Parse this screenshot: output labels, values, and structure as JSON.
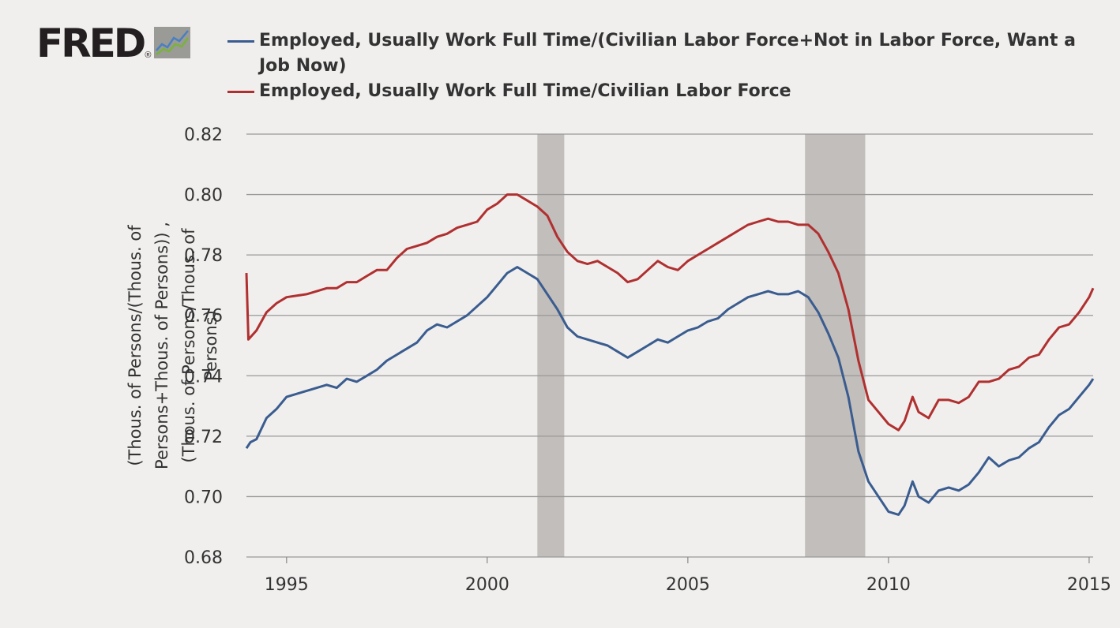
{
  "logo": {
    "text": "FRED",
    "reg": "®",
    "icon": "line-chart-icon"
  },
  "colors": {
    "blue": "#3a5c8f",
    "red": "#b03030",
    "recession": "#c2bebb",
    "grid": "#999999",
    "bg": "#f0efee"
  },
  "chart_data": {
    "type": "line",
    "title": "",
    "xlabel": "",
    "ylabel_lines": [
      "(Thous. of Persons/(Thous. of",
      "Persons+Thous. of Persons)) ,",
      "(Thous. of Persons/Thous. of",
      "Persons)"
    ],
    "xlim": [
      1994.0,
      2015.1
    ],
    "ylim": [
      0.68,
      0.82
    ],
    "x_ticks": [
      1995,
      2000,
      2005,
      2010,
      2015
    ],
    "x_tick_labels": [
      "1995",
      "2000",
      "2005",
      "2010",
      "2015"
    ],
    "y_ticks": [
      0.68,
      0.7,
      0.72,
      0.74,
      0.76,
      0.78,
      0.8,
      0.82
    ],
    "y_tick_labels": [
      "0.68",
      "0.70",
      "0.72",
      "0.74",
      "0.76",
      "0.78",
      "0.80",
      "0.82"
    ],
    "grid": true,
    "recessions": [
      [
        2001.25,
        2001.92
      ],
      [
        2007.92,
        2009.42
      ]
    ],
    "series": [
      {
        "name": "Employed, Usually Work Full Time/(Civilian Labor Force+Not in Labor Force, Want a Job Now)",
        "color": "#3a5c8f",
        "points": [
          [
            1994.0,
            0.716
          ],
          [
            1994.1,
            0.718
          ],
          [
            1994.25,
            0.719
          ],
          [
            1994.5,
            0.726
          ],
          [
            1994.75,
            0.729
          ],
          [
            1995.0,
            0.733
          ],
          [
            1995.5,
            0.735
          ],
          [
            1996.0,
            0.737
          ],
          [
            1996.25,
            0.736
          ],
          [
            1996.5,
            0.739
          ],
          [
            1996.75,
            0.738
          ],
          [
            1997.0,
            0.74
          ],
          [
            1997.25,
            0.742
          ],
          [
            1997.5,
            0.745
          ],
          [
            1997.75,
            0.747
          ],
          [
            1998.0,
            0.749
          ],
          [
            1998.25,
            0.751
          ],
          [
            1998.5,
            0.755
          ],
          [
            1998.75,
            0.757
          ],
          [
            1999.0,
            0.756
          ],
          [
            1999.25,
            0.758
          ],
          [
            1999.5,
            0.76
          ],
          [
            1999.75,
            0.763
          ],
          [
            2000.0,
            0.766
          ],
          [
            2000.25,
            0.77
          ],
          [
            2000.5,
            0.774
          ],
          [
            2000.75,
            0.776
          ],
          [
            2001.0,
            0.774
          ],
          [
            2001.25,
            0.772
          ],
          [
            2001.5,
            0.767
          ],
          [
            2001.75,
            0.762
          ],
          [
            2002.0,
            0.756
          ],
          [
            2002.25,
            0.753
          ],
          [
            2002.5,
            0.752
          ],
          [
            2002.75,
            0.751
          ],
          [
            2003.0,
            0.75
          ],
          [
            2003.25,
            0.748
          ],
          [
            2003.5,
            0.746
          ],
          [
            2003.75,
            0.748
          ],
          [
            2004.0,
            0.75
          ],
          [
            2004.25,
            0.752
          ],
          [
            2004.5,
            0.751
          ],
          [
            2004.75,
            0.753
          ],
          [
            2005.0,
            0.755
          ],
          [
            2005.25,
            0.756
          ],
          [
            2005.5,
            0.758
          ],
          [
            2005.75,
            0.759
          ],
          [
            2006.0,
            0.762
          ],
          [
            2006.25,
            0.764
          ],
          [
            2006.5,
            0.766
          ],
          [
            2006.75,
            0.767
          ],
          [
            2007.0,
            0.768
          ],
          [
            2007.25,
            0.767
          ],
          [
            2007.5,
            0.767
          ],
          [
            2007.75,
            0.768
          ],
          [
            2008.0,
            0.766
          ],
          [
            2008.25,
            0.761
          ],
          [
            2008.5,
            0.754
          ],
          [
            2008.75,
            0.746
          ],
          [
            2009.0,
            0.733
          ],
          [
            2009.25,
            0.715
          ],
          [
            2009.5,
            0.705
          ],
          [
            2009.75,
            0.7
          ],
          [
            2010.0,
            0.695
          ],
          [
            2010.25,
            0.694
          ],
          [
            2010.4,
            0.697
          ],
          [
            2010.6,
            0.705
          ],
          [
            2010.75,
            0.7
          ],
          [
            2011.0,
            0.698
          ],
          [
            2011.25,
            0.702
          ],
          [
            2011.5,
            0.703
          ],
          [
            2011.75,
            0.702
          ],
          [
            2012.0,
            0.704
          ],
          [
            2012.25,
            0.708
          ],
          [
            2012.5,
            0.713
          ],
          [
            2012.75,
            0.71
          ],
          [
            2013.0,
            0.712
          ],
          [
            2013.25,
            0.713
          ],
          [
            2013.5,
            0.716
          ],
          [
            2013.75,
            0.718
          ],
          [
            2014.0,
            0.723
          ],
          [
            2014.25,
            0.727
          ],
          [
            2014.5,
            0.729
          ],
          [
            2014.75,
            0.733
          ],
          [
            2015.0,
            0.737
          ],
          [
            2015.1,
            0.739
          ]
        ]
      },
      {
        "name": "Employed, Usually Work Full Time/Civilian Labor Force",
        "color": "#b03030",
        "points": [
          [
            1994.0,
            0.774
          ],
          [
            1994.05,
            0.752
          ],
          [
            1994.25,
            0.755
          ],
          [
            1994.5,
            0.761
          ],
          [
            1994.75,
            0.764
          ],
          [
            1995.0,
            0.766
          ],
          [
            1995.5,
            0.767
          ],
          [
            1996.0,
            0.769
          ],
          [
            1996.25,
            0.769
          ],
          [
            1996.5,
            0.771
          ],
          [
            1996.75,
            0.771
          ],
          [
            1997.0,
            0.773
          ],
          [
            1997.25,
            0.775
          ],
          [
            1997.5,
            0.775
          ],
          [
            1997.75,
            0.779
          ],
          [
            1998.0,
            0.782
          ],
          [
            1998.25,
            0.783
          ],
          [
            1998.5,
            0.784
          ],
          [
            1998.75,
            0.786
          ],
          [
            1999.0,
            0.787
          ],
          [
            1999.25,
            0.789
          ],
          [
            1999.5,
            0.79
          ],
          [
            1999.75,
            0.791
          ],
          [
            2000.0,
            0.795
          ],
          [
            2000.25,
            0.797
          ],
          [
            2000.5,
            0.8
          ],
          [
            2000.75,
            0.8
          ],
          [
            2001.0,
            0.798
          ],
          [
            2001.25,
            0.796
          ],
          [
            2001.5,
            0.793
          ],
          [
            2001.75,
            0.786
          ],
          [
            2002.0,
            0.781
          ],
          [
            2002.25,
            0.778
          ],
          [
            2002.5,
            0.777
          ],
          [
            2002.75,
            0.778
          ],
          [
            2003.0,
            0.776
          ],
          [
            2003.25,
            0.774
          ],
          [
            2003.5,
            0.771
          ],
          [
            2003.75,
            0.772
          ],
          [
            2004.0,
            0.775
          ],
          [
            2004.25,
            0.778
          ],
          [
            2004.5,
            0.776
          ],
          [
            2004.75,
            0.775
          ],
          [
            2005.0,
            0.778
          ],
          [
            2005.25,
            0.78
          ],
          [
            2005.5,
            0.782
          ],
          [
            2005.75,
            0.784
          ],
          [
            2006.0,
            0.786
          ],
          [
            2006.25,
            0.788
          ],
          [
            2006.5,
            0.79
          ],
          [
            2006.75,
            0.791
          ],
          [
            2007.0,
            0.792
          ],
          [
            2007.25,
            0.791
          ],
          [
            2007.5,
            0.791
          ],
          [
            2007.75,
            0.79
          ],
          [
            2008.0,
            0.79
          ],
          [
            2008.25,
            0.787
          ],
          [
            2008.5,
            0.781
          ],
          [
            2008.75,
            0.774
          ],
          [
            2009.0,
            0.762
          ],
          [
            2009.25,
            0.745
          ],
          [
            2009.5,
            0.732
          ],
          [
            2009.75,
            0.728
          ],
          [
            2010.0,
            0.724
          ],
          [
            2010.25,
            0.722
          ],
          [
            2010.4,
            0.725
          ],
          [
            2010.6,
            0.733
          ],
          [
            2010.75,
            0.728
          ],
          [
            2011.0,
            0.726
          ],
          [
            2011.25,
            0.732
          ],
          [
            2011.5,
            0.732
          ],
          [
            2011.75,
            0.731
          ],
          [
            2012.0,
            0.733
          ],
          [
            2012.25,
            0.738
          ],
          [
            2012.5,
            0.738
          ],
          [
            2012.75,
            0.739
          ],
          [
            2013.0,
            0.742
          ],
          [
            2013.25,
            0.743
          ],
          [
            2013.5,
            0.746
          ],
          [
            2013.75,
            0.747
          ],
          [
            2014.0,
            0.752
          ],
          [
            2014.25,
            0.756
          ],
          [
            2014.5,
            0.757
          ],
          [
            2014.75,
            0.761
          ],
          [
            2015.0,
            0.766
          ],
          [
            2015.1,
            0.769
          ]
        ]
      }
    ]
  }
}
